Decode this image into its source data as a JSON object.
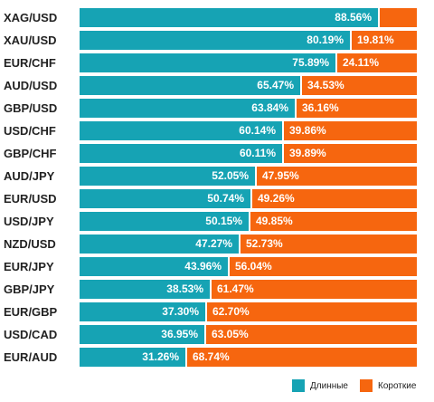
{
  "chart_data": {
    "type": "bar",
    "orientation": "horizontal",
    "stacked": true,
    "categories": [
      "XAG/USD",
      "XAU/USD",
      "EUR/CHF",
      "AUD/USD",
      "GBP/USD",
      "USD/CHF",
      "GBP/CHF",
      "AUD/JPY",
      "EUR/USD",
      "USD/JPY",
      "NZD/USD",
      "EUR/JPY",
      "GBP/JPY",
      "EUR/GBP",
      "USD/CAD",
      "EUR/AUD"
    ],
    "series": [
      {
        "name": "Длинные",
        "color": "#16a3b4",
        "values": [
          88.56,
          80.19,
          75.89,
          65.47,
          63.84,
          60.14,
          60.11,
          52.05,
          50.74,
          50.15,
          47.27,
          43.96,
          38.53,
          37.3,
          36.95,
          31.26
        ],
        "labels": [
          "88.56%",
          "80.19%",
          "75.89%",
          "65.47%",
          "63.84%",
          "60.14%",
          "60.11%",
          "52.05%",
          "50.74%",
          "50.15%",
          "47.27%",
          "43.96%",
          "38.53%",
          "37.30%",
          "36.95%",
          "31.26%"
        ]
      },
      {
        "name": "Короткие",
        "color": "#f6660f",
        "values": [
          11.44,
          19.81,
          24.11,
          34.53,
          36.16,
          39.86,
          39.89,
          47.95,
          49.26,
          49.85,
          52.73,
          56.04,
          61.47,
          62.7,
          63.05,
          68.74
        ],
        "labels": [
          "",
          "19.81%",
          "24.11%",
          "34.53%",
          "36.16%",
          "39.86%",
          "39.89%",
          "47.95%",
          "49.26%",
          "49.85%",
          "52.73%",
          "56.04%",
          "61.47%",
          "62.70%",
          "63.05%",
          "68.74%"
        ]
      }
    ],
    "xlim": [
      0,
      100
    ],
    "legend": "bottom-right"
  }
}
